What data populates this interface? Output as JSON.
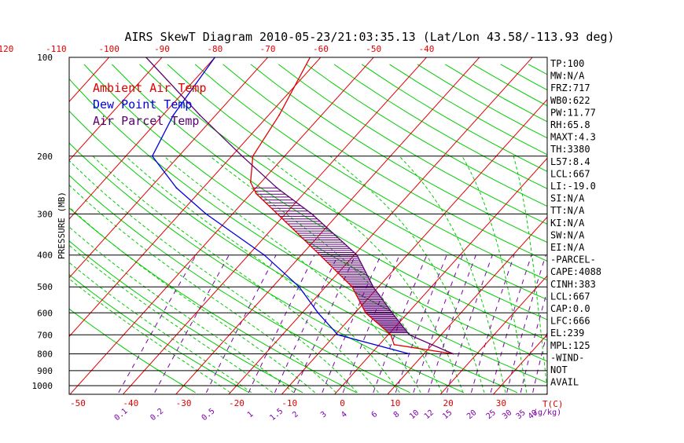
{
  "chart_data": {
    "type": "line",
    "title": "AIRS SkewT Diagram 2010-05-23/21:03:35.13 (Lat/Lon 43.58/-113.93 deg)",
    "ylabel": "PRESSURE (MB)",
    "xlabel_unit": "T(C)",
    "mixing_unit": "(g/kg)",
    "pressure_ticks": [
      "100",
      "200",
      "300",
      "400",
      "500",
      "600",
      "700",
      "800",
      "900",
      "1000"
    ],
    "pressure_ticks_numeric": [
      100,
      200,
      300,
      400,
      500,
      600,
      700,
      800,
      900,
      1000
    ],
    "bottom_temp_ticks": [
      "-50",
      "-40",
      "-30",
      "-20",
      "-10",
      "0",
      "10",
      "20",
      "30"
    ],
    "top_temp_ticks": [
      "-120",
      "-110",
      "-100",
      "-90",
      "-80",
      "-70",
      "-60",
      "-50",
      "-40"
    ],
    "mixing_ratio_ticks": [
      "0.1",
      "0.2",
      "0.5",
      "1",
      "1.5",
      "2",
      "3",
      "4",
      "6",
      "8",
      "10",
      "12",
      "15",
      "20",
      "25",
      "30",
      "35",
      "40"
    ],
    "grid": true,
    "ylim": [
      1000,
      100
    ],
    "series": [
      {
        "name": "Ambient Air Temp",
        "color": "#e00000",
        "points": [
          {
            "p": 800,
            "t": 15.5
          },
          {
            "p": 750,
            "t": 2.8
          },
          {
            "p": 700,
            "t": 0.5
          },
          {
            "p": 600,
            "t": -8
          },
          {
            "p": 500,
            "t": -15
          },
          {
            "p": 400,
            "t": -26.5
          },
          {
            "p": 300,
            "t": -41.5
          },
          {
            "p": 260,
            "t": -49
          },
          {
            "p": 240,
            "t": -52
          },
          {
            "p": 200,
            "t": -56
          },
          {
            "p": 150,
            "t": -58
          },
          {
            "p": 100,
            "t": -62
          }
        ]
      },
      {
        "name": "Dew Point Temp",
        "color": "#0000e0",
        "points": [
          {
            "p": 800,
            "t": 7.2
          },
          {
            "p": 700,
            "t": -9.5
          },
          {
            "p": 600,
            "t": -17
          },
          {
            "p": 500,
            "t": -25
          },
          {
            "p": 400,
            "t": -37
          },
          {
            "p": 300,
            "t": -55
          },
          {
            "p": 250,
            "t": -65
          },
          {
            "p": 200,
            "t": -75
          },
          {
            "p": 150,
            "t": -78
          },
          {
            "p": 100,
            "t": -80
          }
        ]
      },
      {
        "name": "Air Parcel Temp",
        "color": "#5a0070",
        "points": [
          {
            "p": 800,
            "t": 15.5
          },
          {
            "p": 700,
            "t": 4
          },
          {
            "p": 600,
            "t": -3
          },
          {
            "p": 500,
            "t": -11
          },
          {
            "p": 400,
            "t": -19.5
          },
          {
            "p": 300,
            "t": -35
          },
          {
            "p": 250,
            "t": -46
          },
          {
            "p": 200,
            "t": -58
          },
          {
            "p": 150,
            "t": -73
          },
          {
            "p": 100,
            "t": -93
          }
        ]
      }
    ],
    "cape_shading": {
      "color": "#5a0070",
      "p_bottom": 690,
      "p_top": 250
    }
  },
  "indices": [
    "TP:100",
    "MW:N/A",
    "FRZ:717",
    "WB0:622",
    "PW:11.77",
    "RH:65.8",
    "MAXT:4.3",
    "TH:3380",
    "L57:8.4",
    "LCL:667",
    "LI:-19.0",
    "SI:N/A",
    "TT:N/A",
    "KI:N/A",
    "SW:N/A",
    "EI:N/A",
    "-PARCEL-",
    "CAPE:4088",
    "CINH:383",
    "LCL:667",
    "CAP:0.0",
    "LFC:666",
    "EL:239",
    "MPL:125",
    "-WIND-",
    "NOT",
    "AVAIL"
  ],
  "colors": {
    "isotherm": "#e00000",
    "dry_adiabat": "#00cc00",
    "moist_adiabat": "#00cc00",
    "mixing_ratio": "#7a00a8",
    "isobar": "#000000"
  }
}
